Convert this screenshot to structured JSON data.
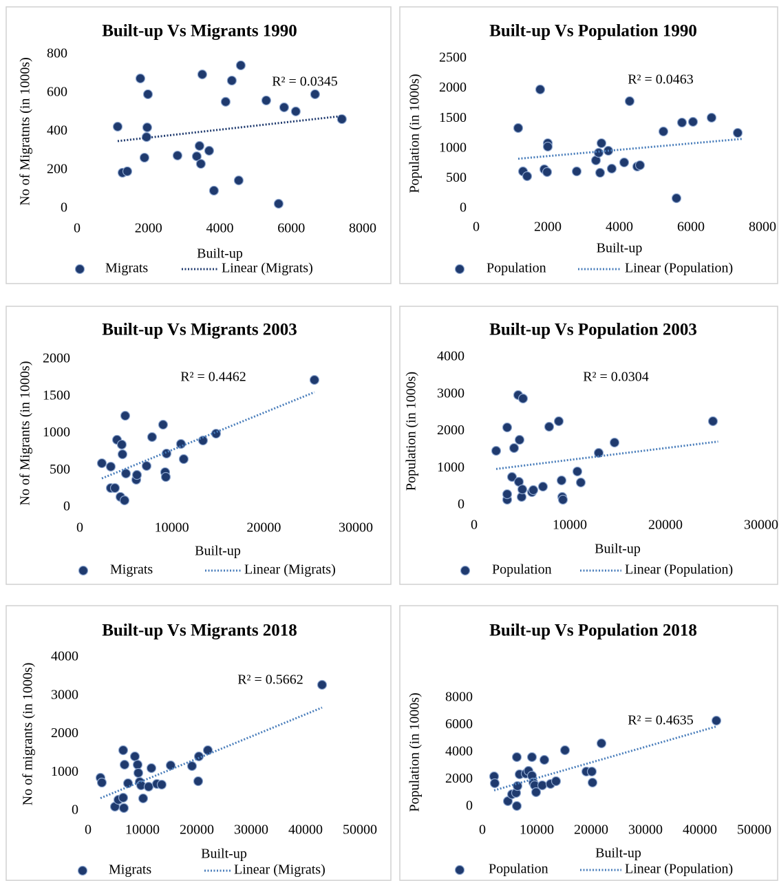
{
  "chart_data": [
    {
      "type": "scatter",
      "title": "Built-up Vs Migrants 1990",
      "xlabel": "Built-up",
      "ylabel": "No of Migratnts (in 1000s)",
      "annotation": "R² = 0.0345",
      "xlim": [
        0,
        8000
      ],
      "xticks": [
        0,
        2000,
        4000,
        6000,
        8000
      ],
      "ylim": [
        0,
        800
      ],
      "yticks": [
        0,
        200,
        400,
        600,
        800
      ],
      "grid": false,
      "series": [
        {
          "name": "Migrats",
          "color": "#1f3a6e",
          "x": [
            1137,
            1272,
            1407,
            1773,
            1888,
            1985,
            1965,
            1946,
            2813,
            3353,
            3430,
            3468,
            3507,
            3700,
            3834,
            4162,
            4335,
            4528,
            4586,
            5299,
            5646,
            5800,
            6127,
            6667,
            7418
          ],
          "values": [
            425,
            186,
            193,
            675,
            264,
            593,
            421,
            371,
            275,
            271,
            325,
            232,
            696,
            300,
            93,
            554,
            664,
            146,
            743,
            561,
            25,
            525,
            504,
            593,
            464
          ]
        },
        {
          "name": "Linear (Migrats)",
          "color": "#1f3a6e",
          "line_style": "dotted",
          "x": [
            1137,
            7418
          ],
          "values": [
            350,
            480
          ]
        }
      ]
    },
    {
      "type": "scatter",
      "title": "Built-up Vs Population 1990",
      "xlabel": "Built-up",
      "ylabel": "Population (in 1000s)",
      "annotation": "R² = 0.0463",
      "xlim": [
        0,
        8000
      ],
      "xticks": [
        0,
        2000,
        4000,
        6000,
        8000
      ],
      "ylim": [
        0,
        2500
      ],
      "yticks": [
        0,
        500,
        1000,
        1500,
        2000,
        2500
      ],
      "grid": false,
      "series": [
        {
          "name": "Population",
          "color": "#1f3a6e",
          "x": [
            1173,
            1308,
            1423,
            1788,
            1904,
            1981,
            2000,
            2000,
            2808,
            3346,
            3423,
            3462,
            3500,
            3692,
            3788,
            4135,
            4288,
            4500,
            4577,
            5231,
            5596,
            5750,
            6058,
            6577,
            7308
          ],
          "values": [
            1342,
            619,
            539,
            1984,
            654,
            608,
            1089,
            1032,
            619,
            803,
            929,
            596,
            1089,
            963,
            665,
            768,
            1789,
            700,
            722,
            1284,
            172,
            1433,
            1445,
            1514,
            1261
          ]
        },
        {
          "name": "Linear (Population)",
          "color": "#4a7ebb",
          "line_style": "dotted",
          "x": [
            1173,
            7418
          ],
          "values": [
            830,
            1160
          ]
        }
      ]
    },
    {
      "type": "scatter",
      "title": "Built-up Vs Migrants 2003",
      "xlabel": "Built-up",
      "ylabel": "No of Migrants (in 1000s)",
      "annotation": "R² = 0.4462",
      "xlim": [
        0,
        30000
      ],
      "xticks": [
        0,
        10000,
        20000,
        30000
      ],
      "ylim": [
        0,
        2000
      ],
      "yticks": [
        0,
        500,
        1000,
        1500,
        2000
      ],
      "grid": false,
      "series": [
        {
          "name": "Migrats",
          "color": "#1f3a6e",
          "x": [
            2393,
            3366,
            3366,
            3814,
            4040,
            4414,
            4563,
            4638,
            4862,
            4937,
            5012,
            6135,
            6210,
            7255,
            7853,
            9050,
            9275,
            9349,
            9424,
            10995,
            11294,
            13388,
            14809,
            25505
          ],
          "values": [
            595,
            549,
            260,
            260,
            912,
            140,
            847,
            716,
            93,
            1237,
            456,
            372,
            437,
            558,
            949,
            1116,
            474,
            409,
            726,
            856,
            651,
            902,
            995,
            1721
          ]
        },
        {
          "name": "Linear (Migrats)",
          "color": "#4a7ebb",
          "line_style": "dotted",
          "x": [
            2393,
            25505
          ],
          "values": [
            390,
            1555
          ]
        }
      ]
    },
    {
      "type": "scatter",
      "title": "Built-up Vs Population 2003",
      "xlabel": "Built-up",
      "ylabel": "Population (in 1000s)",
      "annotation": "R² = 0.0304",
      "xlim": [
        0,
        30000
      ],
      "xticks": [
        0,
        10000,
        20000,
        30000
      ],
      "ylim": [
        0,
        4000
      ],
      "yticks": [
        0,
        1000,
        2000,
        3000,
        4000
      ],
      "grid": false,
      "series": [
        {
          "name": "Population",
          "color": "#1f3a6e",
          "x": [
            2302,
            3453,
            3453,
            3453,
            3957,
            4173,
            4604,
            4676,
            4748,
            4964,
            5036,
            5108,
            6043,
            6187,
            7194,
            7842,
            8849,
            9137,
            9209,
            9281,
            10791,
            11151,
            13022,
            14676,
            24964
          ],
          "values": [
            1470,
            149,
            298,
            2102,
            763,
            1544,
            2977,
            633,
            1767,
            223,
            428,
            2884,
            353,
            409,
            502,
            2121,
            2270,
            670,
            223,
            149,
            912,
            614,
            1414,
            1693,
            2270
          ]
        },
        {
          "name": "Linear (Population)",
          "color": "#4a7ebb",
          "line_style": "dotted",
          "x": [
            2302,
            25505
          ],
          "values": [
            980,
            1720
          ]
        }
      ]
    },
    {
      "type": "scatter",
      "title": "Built-up Vs Migrants 2018",
      "xlabel": "Built-up",
      "ylabel": "No of migrants (in 1000s)",
      "annotation": "R² = 0.5662",
      "xlim": [
        0,
        50000
      ],
      "xticks": [
        0,
        10000,
        20000,
        30000,
        40000,
        50000
      ],
      "ylim": [
        0,
        4000
      ],
      "yticks": [
        0,
        1000,
        2000,
        3000,
        4000
      ],
      "grid": false,
      "series": [
        {
          "name": "Migrats",
          "color": "#1f3a6e",
          "x": [
            2278,
            2532,
            4937,
            5570,
            6456,
            6456,
            6582,
            6709,
            7342,
            8608,
            9114,
            9241,
            9494,
            9747,
            10127,
            11139,
            11646,
            12658,
            13544,
            15190,
            19114,
            20253,
            20380,
            22025,
            43038
          ],
          "values": [
            861,
            735,
            108,
            287,
            341,
            1578,
            72,
            1202,
            717,
            1417,
            1202,
            987,
            753,
            664,
            323,
            628,
            1112,
            700,
            682,
            1184,
            1166,
            771,
            1417,
            1578,
            3283
          ]
        },
        {
          "name": "Linear (Migrats)",
          "color": "#4a7ebb",
          "line_style": "dotted",
          "x": [
            2278,
            43038
          ],
          "values": [
            330,
            2690
          ]
        }
      ]
    },
    {
      "type": "scatter",
      "title": "Built-up Vs Population 2018",
      "xlabel": "Built-up",
      "ylabel": "Population (in 1000s)",
      "annotation": "R² = 0.4635",
      "xlim": [
        0,
        50000
      ],
      "xticks": [
        0,
        10000,
        20000,
        30000,
        40000,
        50000
      ],
      "ylim": [
        0,
        8000
      ],
      "yticks": [
        0,
        2000,
        4000,
        6000,
        8000
      ],
      "grid": false,
      "series": [
        {
          "name": "Population",
          "color": "#1f3a6e",
          "x": [
            2152,
            2278,
            4684,
            5443,
            6203,
            6329,
            6329,
            6456,
            6835,
            7975,
            8481,
            9114,
            9114,
            9367,
            9620,
            9873,
            11013,
            11392,
            12532,
            13544,
            15190,
            19114,
            20127,
            20253,
            21899,
            43038
          ],
          "values": [
            2228,
            1722,
            405,
            911,
            1013,
            3645,
            51,
            1519,
            2380,
            2430,
            2633,
            3645,
            2278,
            1772,
            1570,
            1063,
            1570,
            3443,
            1671,
            1873,
            4152,
            2582,
            2582,
            1772,
            4658,
            6329
          ]
        },
        {
          "name": "Linear (Population)",
          "color": "#4a7ebb",
          "line_style": "dotted",
          "x": [
            2152,
            43038
          ],
          "values": [
            1200,
            5900
          ]
        }
      ]
    }
  ]
}
